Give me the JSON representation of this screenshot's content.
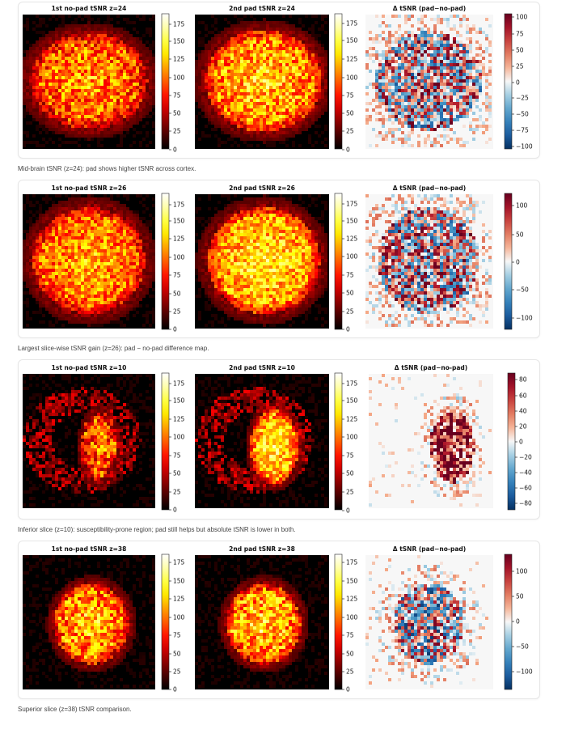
{
  "figures": [
    {
      "caption": "Mid-brain tSNR (z=24): pad shows higher tSNR across cortex.",
      "panels": [
        {
          "title": "1st no-pad tSNR z=24",
          "ticks": [
            "175",
            "150",
            "125",
            "100",
            "75",
            "50",
            "25",
            "0"
          ]
        },
        {
          "title": "2nd pad tSNR z=24",
          "ticks": [
            "175",
            "150",
            "125",
            "100",
            "75",
            "50",
            "25",
            "0"
          ]
        },
        {
          "title": "Δ tSNR (pad−no-pad)",
          "ticks": [
            "100",
            "75",
            "50",
            "25",
            "0",
            "−25",
            "−50",
            "−75",
            "−100"
          ]
        }
      ]
    },
    {
      "caption": "Largest slice-wise tSNR gain (z=26): pad − no-pad difference map.",
      "panels": [
        {
          "title": "1st no-pad tSNR z=26",
          "ticks": [
            "175",
            "150",
            "125",
            "100",
            "75",
            "50",
            "25",
            "0"
          ]
        },
        {
          "title": "2nd pad tSNR z=26",
          "ticks": [
            "175",
            "150",
            "125",
            "100",
            "75",
            "50",
            "25",
            "0"
          ]
        },
        {
          "title": "Δ tSNR (pad−no-pad)",
          "ticks": [
            "100",
            "50",
            "0",
            "−50",
            "−100"
          ]
        }
      ]
    },
    {
      "caption": "Inferior slice (z=10): susceptibility-prone region; pad still helps but absolute tSNR is lower in both.",
      "panels": [
        {
          "title": "1st no-pad tSNR z=10",
          "ticks": [
            "175",
            "150",
            "125",
            "100",
            "75",
            "50",
            "25",
            "0"
          ]
        },
        {
          "title": "2nd pad tSNR z=10",
          "ticks": [
            "175",
            "150",
            "125",
            "100",
            "75",
            "50",
            "25",
            "0"
          ]
        },
        {
          "title": "Δ tSNR (pad−no-pad)",
          "ticks": [
            "80",
            "60",
            "40",
            "20",
            "0",
            "−20",
            "−40",
            "−60",
            "−80"
          ]
        }
      ]
    },
    {
      "caption": "Superior slice (z=38) tSNR comparison.",
      "panels": [
        {
          "title": "1st no-pad tSNR z=38",
          "ticks": [
            "175",
            "150",
            "125",
            "100",
            "75",
            "50",
            "25",
            "0"
          ]
        },
        {
          "title": "2nd pad tSNR z=38",
          "ticks": [
            "175",
            "150",
            "125",
            "100",
            "75",
            "50",
            "25",
            "0"
          ]
        },
        {
          "title": "Δ tSNR (pad−no-pad)",
          "ticks": [
            "100",
            "50",
            "0",
            "−50",
            "−100"
          ]
        }
      ]
    }
  ],
  "chart_data": [
    {
      "type": "heatmap",
      "title": "1st no-pad tSNR z=24",
      "colormap": "hot",
      "vlim": [
        0,
        190
      ]
    },
    {
      "type": "heatmap",
      "title": "2nd pad tSNR z=24",
      "colormap": "hot",
      "vlim": [
        0,
        190
      ]
    },
    {
      "type": "heatmap",
      "title": "Δ tSNR (pad−no-pad)",
      "colormap": "RdBu_r",
      "vlim": [
        -110,
        110
      ]
    },
    {
      "type": "heatmap",
      "title": "1st no-pad tSNR z=26",
      "colormap": "hot",
      "vlim": [
        0,
        190
      ]
    },
    {
      "type": "heatmap",
      "title": "2nd pad tSNR z=26",
      "colormap": "hot",
      "vlim": [
        0,
        190
      ]
    },
    {
      "type": "heatmap",
      "title": "Δ tSNR (pad−no-pad)",
      "colormap": "RdBu_r",
      "vlim": [
        -120,
        120
      ]
    },
    {
      "type": "heatmap",
      "title": "1st no-pad tSNR z=10",
      "colormap": "hot",
      "vlim": [
        0,
        190
      ]
    },
    {
      "type": "heatmap",
      "title": "2nd pad tSNR z=10",
      "colormap": "hot",
      "vlim": [
        0,
        190
      ]
    },
    {
      "type": "heatmap",
      "title": "Δ tSNR (pad−no-pad)",
      "colormap": "RdBu_r",
      "vlim": [
        -90,
        90
      ]
    },
    {
      "type": "heatmap",
      "title": "1st no-pad tSNR z=38",
      "colormap": "hot",
      "vlim": [
        0,
        190
      ]
    },
    {
      "type": "heatmap",
      "title": "2nd pad tSNR z=38",
      "colormap": "hot",
      "vlim": [
        0,
        190
      ]
    },
    {
      "type": "heatmap",
      "title": "Δ tSNR (pad−no-pad)",
      "colormap": "RdBu_r",
      "vlim": [
        -130,
        130
      ]
    }
  ]
}
